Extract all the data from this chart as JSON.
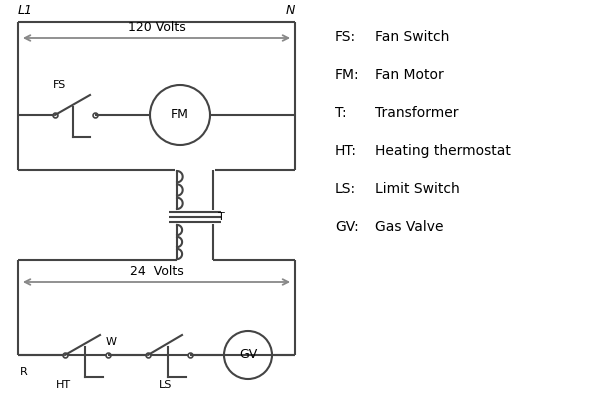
{
  "bg_color": "#ffffff",
  "line_color": "#444444",
  "text_color": "#000000",
  "arrow_color": "#888888",
  "legend_entries": [
    [
      "FS:",
      "Fan Switch"
    ],
    [
      "FM:",
      "Fan Motor"
    ],
    [
      "T:",
      "Transformer"
    ],
    [
      "HT:",
      "Heating thermostat"
    ],
    [
      "LS:",
      "Limit Switch"
    ],
    [
      "GV:",
      "Gas Valve"
    ]
  ],
  "L1_label": "L1",
  "N_label": "N",
  "volts120": "120 Volts",
  "volts24": "24  Volts"
}
